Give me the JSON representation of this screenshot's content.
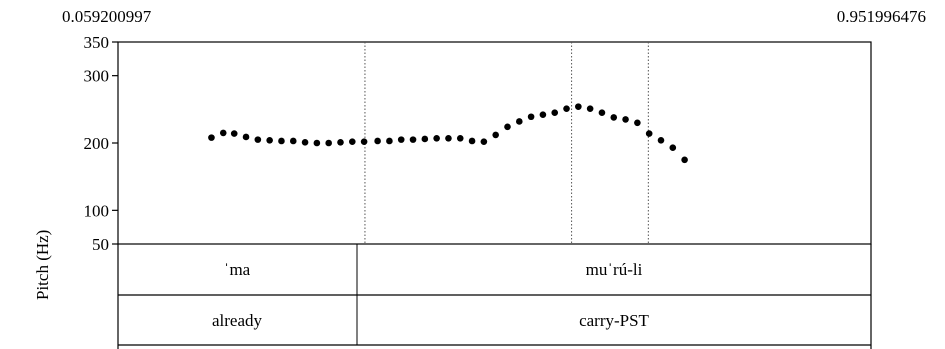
{
  "chart_data": {
    "type": "scatter",
    "time_start": "0.059200997",
    "time_end": "0.951996476",
    "ylabel": "Pitch (Hz)",
    "yticks": [
      50,
      100,
      200,
      300,
      350
    ],
    "ylim": [
      50,
      350
    ],
    "xlim": [
      0.059200997,
      0.951996476
    ],
    "boundaries": [
      0.352,
      0.597,
      0.688
    ],
    "series": [
      {
        "points": [
          [
            0.17,
            208
          ],
          [
            0.184,
            215
          ],
          [
            0.197,
            214
          ],
          [
            0.211,
            209
          ],
          [
            0.225,
            205
          ],
          [
            0.239,
            204
          ],
          [
            0.253,
            203
          ],
          [
            0.267,
            203
          ],
          [
            0.281,
            201
          ],
          [
            0.295,
            200
          ],
          [
            0.309,
            200
          ],
          [
            0.323,
            201
          ],
          [
            0.337,
            202
          ],
          [
            0.351,
            202
          ],
          [
            0.367,
            203
          ],
          [
            0.381,
            203
          ],
          [
            0.395,
            205
          ],
          [
            0.409,
            205
          ],
          [
            0.423,
            206
          ],
          [
            0.437,
            207
          ],
          [
            0.451,
            207
          ],
          [
            0.465,
            207
          ],
          [
            0.479,
            203
          ],
          [
            0.493,
            202
          ],
          [
            0.507,
            212
          ],
          [
            0.521,
            224
          ],
          [
            0.535,
            232
          ],
          [
            0.549,
            239
          ],
          [
            0.563,
            242
          ],
          [
            0.577,
            245
          ],
          [
            0.591,
            251
          ],
          [
            0.605,
            254
          ],
          [
            0.619,
            251
          ],
          [
            0.633,
            245
          ],
          [
            0.647,
            238
          ],
          [
            0.661,
            235
          ],
          [
            0.675,
            230
          ],
          [
            0.689,
            214
          ],
          [
            0.703,
            204
          ],
          [
            0.717,
            193
          ],
          [
            0.731,
            175
          ]
        ]
      }
    ]
  },
  "tiers": [
    {
      "intervals": [
        {
          "label": "ˈma"
        },
        {
          "label": "muˈrú-li"
        }
      ]
    },
    {
      "intervals": [
        {
          "label": "already"
        },
        {
          "label": "carry-PST"
        }
      ]
    }
  ]
}
